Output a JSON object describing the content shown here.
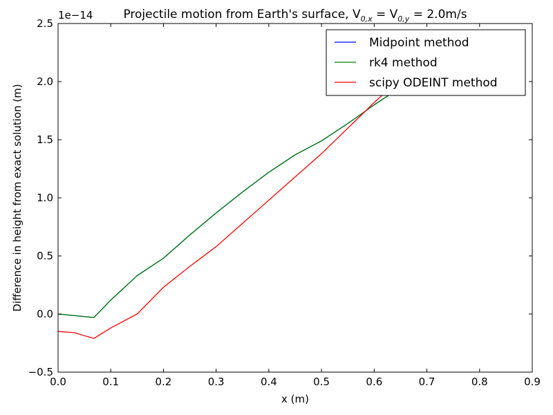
{
  "chart_data": {
    "type": "line",
    "title": "Projectile motion from Earth's surface, V0,x = V0,y = 2.0m/s",
    "title_parts": {
      "prefix": "Projectile motion from Earth's surface, V",
      "sub1": "0,x",
      "middle": " = V",
      "sub2": "0,y",
      "suffix": " = 2.0m/s"
    },
    "xlabel": "x (m)",
    "ylabel": "Difference in height from exact solution (m)",
    "y_offset_label": "1e−14",
    "xlim": [
      0.0,
      0.9
    ],
    "ylim": [
      -0.5,
      2.5
    ],
    "y_scale_factor": "1e-14",
    "x_ticks": [
      "0.0",
      "0.1",
      "0.2",
      "0.3",
      "0.4",
      "0.5",
      "0.6",
      "0.7",
      "0.8",
      "0.9"
    ],
    "y_ticks": [
      "−0.5",
      "0.0",
      "0.5",
      "1.0",
      "1.5",
      "2.0",
      "2.5"
    ],
    "grid": false,
    "legend_position": "top-right",
    "series": [
      {
        "name": "Midpoint method",
        "color": "#0000ff",
        "x": [
          0.0,
          0.068,
          0.1,
          0.15,
          0.2,
          0.25,
          0.3,
          0.35,
          0.4,
          0.45,
          0.5,
          0.55,
          0.6,
          0.65,
          0.7,
          0.75,
          0.78
        ],
        "y": [
          0.0,
          -0.03,
          0.12,
          0.33,
          0.48,
          0.68,
          0.87,
          1.05,
          1.22,
          1.37,
          1.49,
          1.64,
          1.8,
          1.95,
          2.12,
          2.26,
          2.35
        ]
      },
      {
        "name": "rk4 method",
        "color": "#007f00",
        "x": [
          0.0,
          0.068,
          0.1,
          0.15,
          0.2,
          0.25,
          0.3,
          0.35,
          0.4,
          0.45,
          0.5,
          0.55,
          0.6,
          0.65,
          0.7,
          0.75,
          0.78
        ],
        "y": [
          0.0,
          -0.03,
          0.12,
          0.33,
          0.48,
          0.68,
          0.87,
          1.05,
          1.22,
          1.37,
          1.49,
          1.64,
          1.8,
          1.95,
          2.12,
          2.26,
          2.35
        ]
      },
      {
        "name": "scipy ODEINT method",
        "color": "#ff0000",
        "x": [
          0.0,
          0.03,
          0.068,
          0.1,
          0.15,
          0.2,
          0.25,
          0.3,
          0.35,
          0.4,
          0.45,
          0.5,
          0.55,
          0.6,
          0.65,
          0.7
        ],
        "y": [
          -0.15,
          -0.16,
          -0.21,
          -0.12,
          0.0,
          0.23,
          0.41,
          0.58,
          0.78,
          0.98,
          1.18,
          1.38,
          1.6,
          1.82,
          2.03,
          2.26
        ]
      }
    ]
  }
}
